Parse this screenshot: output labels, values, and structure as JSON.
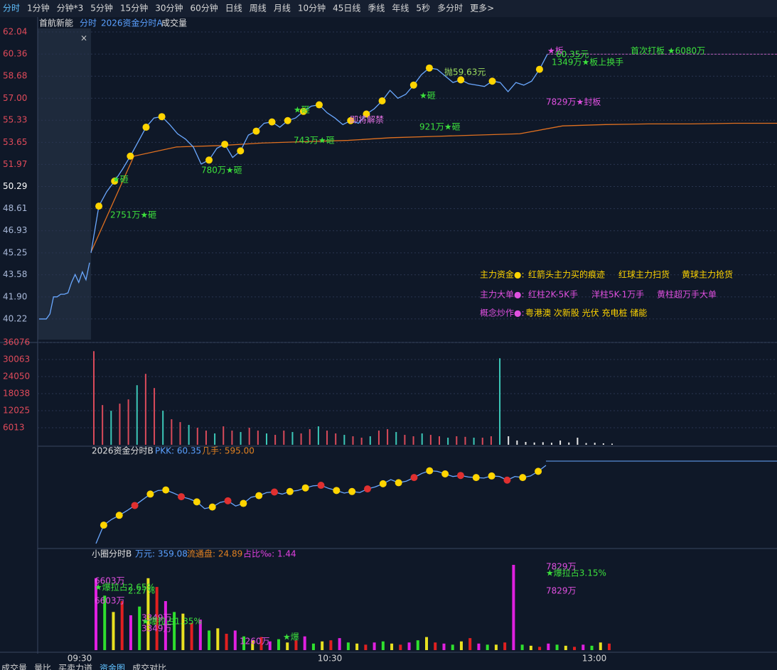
{
  "toolbar": {
    "tabs": [
      "分时",
      "1分钟",
      "分钟*3",
      "5分钟",
      "15分钟",
      "30分钟",
      "60分钟",
      "日线",
      "周线",
      "月线",
      "10分钟",
      "45日线",
      "季线",
      "年线",
      "5秒",
      "多分时",
      "更多>"
    ]
  },
  "header": {
    "stock": "首航新能",
    "mode": "分时",
    "indicator": "2026资金分时A",
    "volume": "成交量"
  },
  "price_panel": {
    "ylim": [
      38.65,
      62.31
    ],
    "yticks": [
      {
        "value": 62.04,
        "label": "62.04"
      },
      {
        "value": 60.36,
        "label": "60.36"
      },
      {
        "value": 58.68,
        "label": "58.68"
      },
      {
        "value": 57.0,
        "label": "57.00"
      },
      {
        "value": 55.33,
        "label": "55.33"
      },
      {
        "value": 53.65,
        "label": "53.65"
      },
      {
        "value": 51.97,
        "label": "51.97"
      },
      {
        "value": 50.29,
        "label": "50.29"
      },
      {
        "value": 48.61,
        "label": "48.61"
      },
      {
        "value": 46.93,
        "label": "46.93"
      },
      {
        "value": 45.25,
        "label": "45.25"
      },
      {
        "value": 43.58,
        "label": "43.58"
      },
      {
        "value": 41.9,
        "label": "41.90"
      },
      {
        "value": 40.22,
        "label": "40.22"
      }
    ],
    "premarket": [
      40.22,
      40.22,
      40.22,
      40.6,
      41.9,
      41.9,
      42.1,
      42.1,
      42.2,
      43.0,
      43.6,
      43.0,
      43.8,
      43.2,
      44.5
    ],
    "price": [
      45.25,
      48.8,
      49.9,
      50.7,
      51.6,
      52.6,
      53.7,
      54.8,
      55.5,
      55.6,
      55.0,
      54.3,
      53.9,
      53.3,
      52.0,
      52.3,
      53.2,
      53.5,
      52.5,
      53.0,
      54.2,
      54.5,
      55.1,
      55.2,
      54.8,
      55.3,
      55.5,
      56.0,
      56.4,
      56.5,
      55.9,
      55.5,
      55.0,
      55.3,
      55.1,
      55.8,
      56.2,
      56.8,
      57.6,
      57.0,
      57.3,
      58.0,
      58.8,
      59.3,
      59.2,
      58.7,
      58.2,
      58.4,
      58.1,
      58.0,
      57.9,
      58.3,
      58.2,
      57.5,
      58.2,
      58.0,
      58.3,
      59.2,
      60.35
    ],
    "price_color": "#6aa8ff",
    "avg": [
      45.3,
      52.6,
      53.3,
      53.4,
      53.6,
      53.7,
      53.8,
      54.0,
      54.1,
      54.2,
      54.3,
      54.9,
      55.0,
      55.05,
      55.05,
      55.1,
      55.1
    ],
    "avg_color": "#e07020",
    "annotations": [
      "2751万★砸",
      "★砸",
      "780万★砸",
      "743万★砸",
      "★砸",
      "即将解禁",
      "921万★砸",
      "★砸",
      "抛59.63元",
      "★板",
      "60.35元",
      "1349万★板上换手",
      "7829万★封板",
      "首次打板 ★6080万"
    ],
    "legend": [
      [
        "主力资金●:",
        "红箭头主力买的痕迹",
        "红球主力扫货",
        "黄球主力抢货"
      ],
      [
        "主力大单●:",
        "红柱2K-5K手",
        "洋柱5K-1万手",
        "黄柱超万手大单"
      ],
      [
        "概念炒作●:",
        "粤港澳 次新股 光伏 充电桩 储能"
      ]
    ]
  },
  "volume_panel": {
    "ylim": [
      0,
      36076
    ],
    "yticks": [
      36076,
      30063,
      24050,
      18038,
      12025,
      6013
    ],
    "color": "#d94a5a",
    "values": [
      33000,
      14000,
      12000,
      14500,
      16000,
      21000,
      25000,
      20000,
      12000,
      9000,
      8000,
      7000,
      6000,
      5000,
      4000,
      6500,
      5000,
      4500,
      6000,
      5000,
      4000,
      3500,
      5000,
      4500,
      4000,
      5500,
      6500,
      5000,
      4000,
      3500,
      3000,
      2500,
      3000,
      5000,
      5500,
      4500,
      3500,
      3000,
      4000,
      3500,
      3000,
      2500,
      3000,
      2800,
      2500,
      2500,
      3000,
      30500,
      3000,
      1500,
      1000,
      800,
      900,
      700,
      1500,
      800,
      2500,
      600,
      700,
      500,
      400
    ]
  },
  "fund_panel": {
    "title": "2026资金分时B",
    "pkk": "PKK: 60.35",
    "lots": "几手: 595.00"
  },
  "small_panel": {
    "title": "小圈分时B",
    "wan": "万元: 359.08",
    "float": "流通盘: 24.89",
    "ratio": "占比‰: 1.44",
    "values": [
      6603,
      5000,
      3500,
      4500,
      3200,
      4000,
      6603,
      5800,
      4500,
      3500,
      3349,
      2500,
      2800,
      1800,
      2000,
      1500,
      1800,
      1260,
      900,
      1200,
      800,
      1000,
      700,
      900,
      1260,
      600,
      800,
      900,
      1100,
      700,
      600,
      500,
      700,
      800,
      600,
      500,
      700,
      900,
      1200,
      700,
      600,
      500,
      800,
      1100,
      600,
      500,
      500,
      700,
      7829,
      500,
      400,
      300,
      600,
      500,
      400,
      300,
      500,
      400,
      700,
      600
    ],
    "colors": [
      "#e020e0",
      "#2ee02e",
      "#e8e020",
      "#e02020"
    ],
    "labels": [
      "6603万",
      "★爆拉占2.65%",
      "2.27%",
      "6603万",
      "3349万",
      "★爆拉占1.35%",
      "3349万",
      "7829万",
      "★爆拉占3.15%",
      "7829万",
      "1260万",
      "★爆"
    ]
  },
  "time_axis": [
    "09:30",
    "10:30",
    "13:00"
  ],
  "bottom_tabs": [
    "成交量",
    "量比",
    "买卖力道",
    "资金图",
    "成交对比"
  ]
}
